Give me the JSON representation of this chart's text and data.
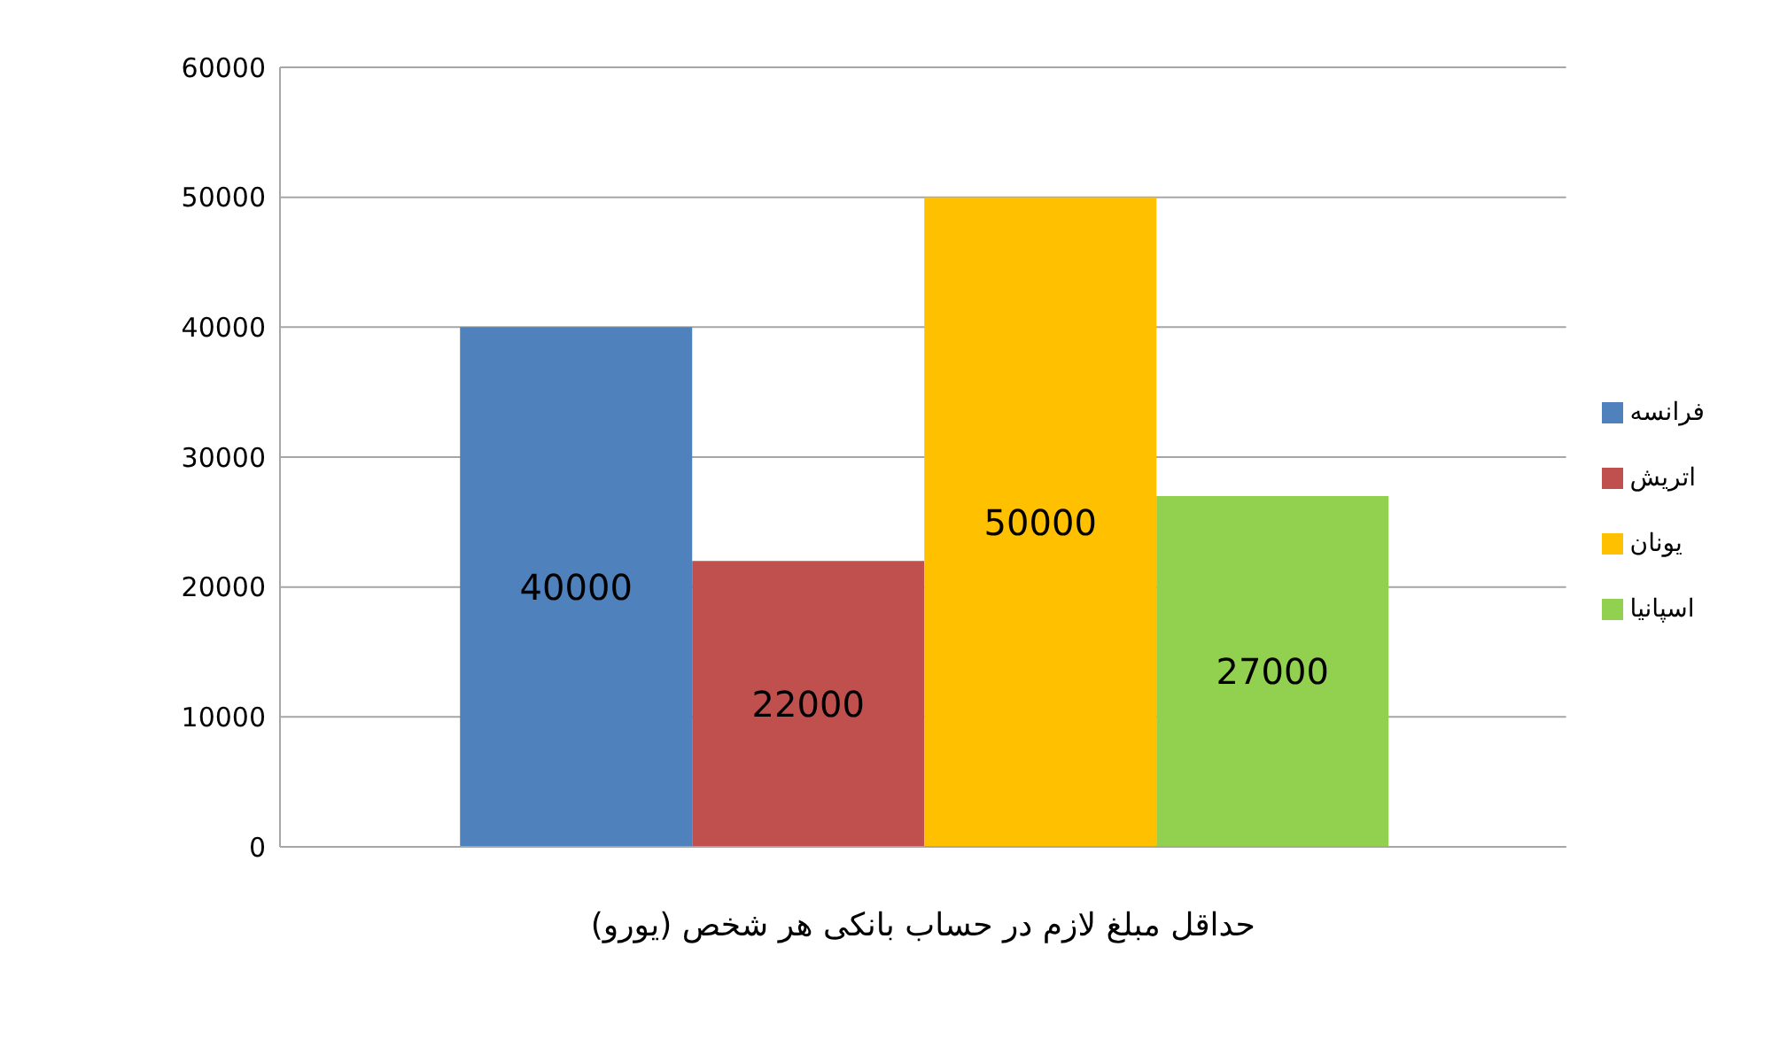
{
  "chart_data": {
    "type": "bar",
    "xlabel": "حداقل مبلغ لازم در حساب بانکی هر شخص (یورو)",
    "categories": [
      null
    ],
    "series": [
      {
        "name": "فرانسه",
        "color": "#4f81bd",
        "values": [
          40000
        ]
      },
      {
        "name": "اتریش",
        "color": "#c0504d",
        "values": [
          22000
        ]
      },
      {
        "name": "یونان",
        "color": "#ffc000",
        "values": [
          50000
        ]
      },
      {
        "name": "اسپانیا",
        "color": "#92d050",
        "values": [
          27000
        ]
      }
    ],
    "ylim": [
      0,
      60000
    ],
    "yticks": [
      0,
      10000,
      20000,
      30000,
      40000,
      50000,
      60000
    ],
    "grid": "y",
    "legend": "right",
    "data_labels": true
  }
}
